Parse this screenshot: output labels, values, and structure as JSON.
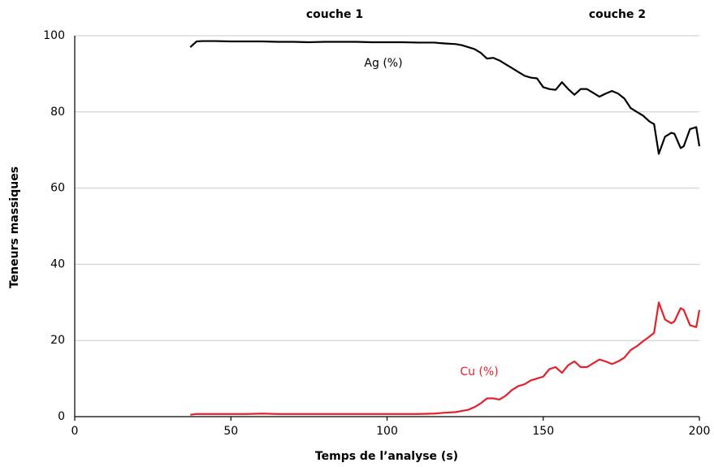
{
  "chart_data": {
    "type": "line",
    "xlabel": "Temps de l’analyse (s)",
    "ylabel": "Teneurs massiques",
    "annotations": [
      "couche 1",
      "couche 2"
    ],
    "x": [
      37,
      39,
      41,
      45,
      50,
      55,
      60,
      65,
      70,
      75,
      80,
      85,
      90,
      95,
      100,
      105,
      110,
      115,
      118,
      122,
      124,
      126,
      128,
      130,
      132,
      134,
      136,
      138,
      140,
      142,
      144,
      146,
      148,
      150,
      152,
      154,
      156,
      158,
      160,
      162,
      164,
      166,
      168,
      170,
      172,
      174,
      176,
      178,
      180,
      182,
      184,
      185.5,
      187,
      189,
      191,
      192,
      194,
      195,
      197,
      199,
      200
    ],
    "series": [
      {
        "name": "Ag (%)",
        "color": "#000000",
        "values": [
          97,
          98.5,
          98.6,
          98.6,
          98.5,
          98.5,
          98.5,
          98.4,
          98.4,
          98.3,
          98.4,
          98.4,
          98.4,
          98.3,
          98.3,
          98.3,
          98.2,
          98.2,
          98,
          97.8,
          97.5,
          97,
          96.5,
          95.5,
          94,
          94.2,
          93.5,
          92.5,
          91.5,
          90.5,
          89.5,
          89,
          88.8,
          86.5,
          86,
          85.8,
          87.8,
          86,
          84.5,
          86,
          86,
          85,
          84,
          84.8,
          85.5,
          84.8,
          83.5,
          81,
          80,
          79,
          77.5,
          76.8,
          69,
          73.5,
          74.5,
          74.3,
          70.5,
          71,
          75.5,
          76,
          71
        ]
      },
      {
        "name": "Cu (%)",
        "color": "#e3212b",
        "values": [
          0.5,
          0.7,
          0.7,
          0.7,
          0.7,
          0.7,
          0.8,
          0.7,
          0.7,
          0.7,
          0.7,
          0.7,
          0.7,
          0.7,
          0.7,
          0.7,
          0.7,
          0.8,
          1,
          1.2,
          1.5,
          1.8,
          2.5,
          3.5,
          4.8,
          4.8,
          4.5,
          5.5,
          7,
          8,
          8.5,
          9.5,
          10,
          10.5,
          12.5,
          13,
          11.5,
          13.5,
          14.5,
          13,
          13,
          14,
          15,
          14.5,
          13.8,
          14.5,
          15.5,
          17.5,
          18.5,
          19.8,
          21,
          22,
          30,
          25.5,
          24.5,
          25,
          28.5,
          28,
          24,
          23.5,
          28
        ]
      }
    ],
    "xlim": [
      0,
      200
    ],
    "xticks": [
      0,
      50,
      100,
      150,
      200
    ],
    "ylim": [
      0,
      100
    ],
    "yticks": [
      0,
      20,
      40,
      60,
      80,
      100
    ],
    "grid": true
  }
}
